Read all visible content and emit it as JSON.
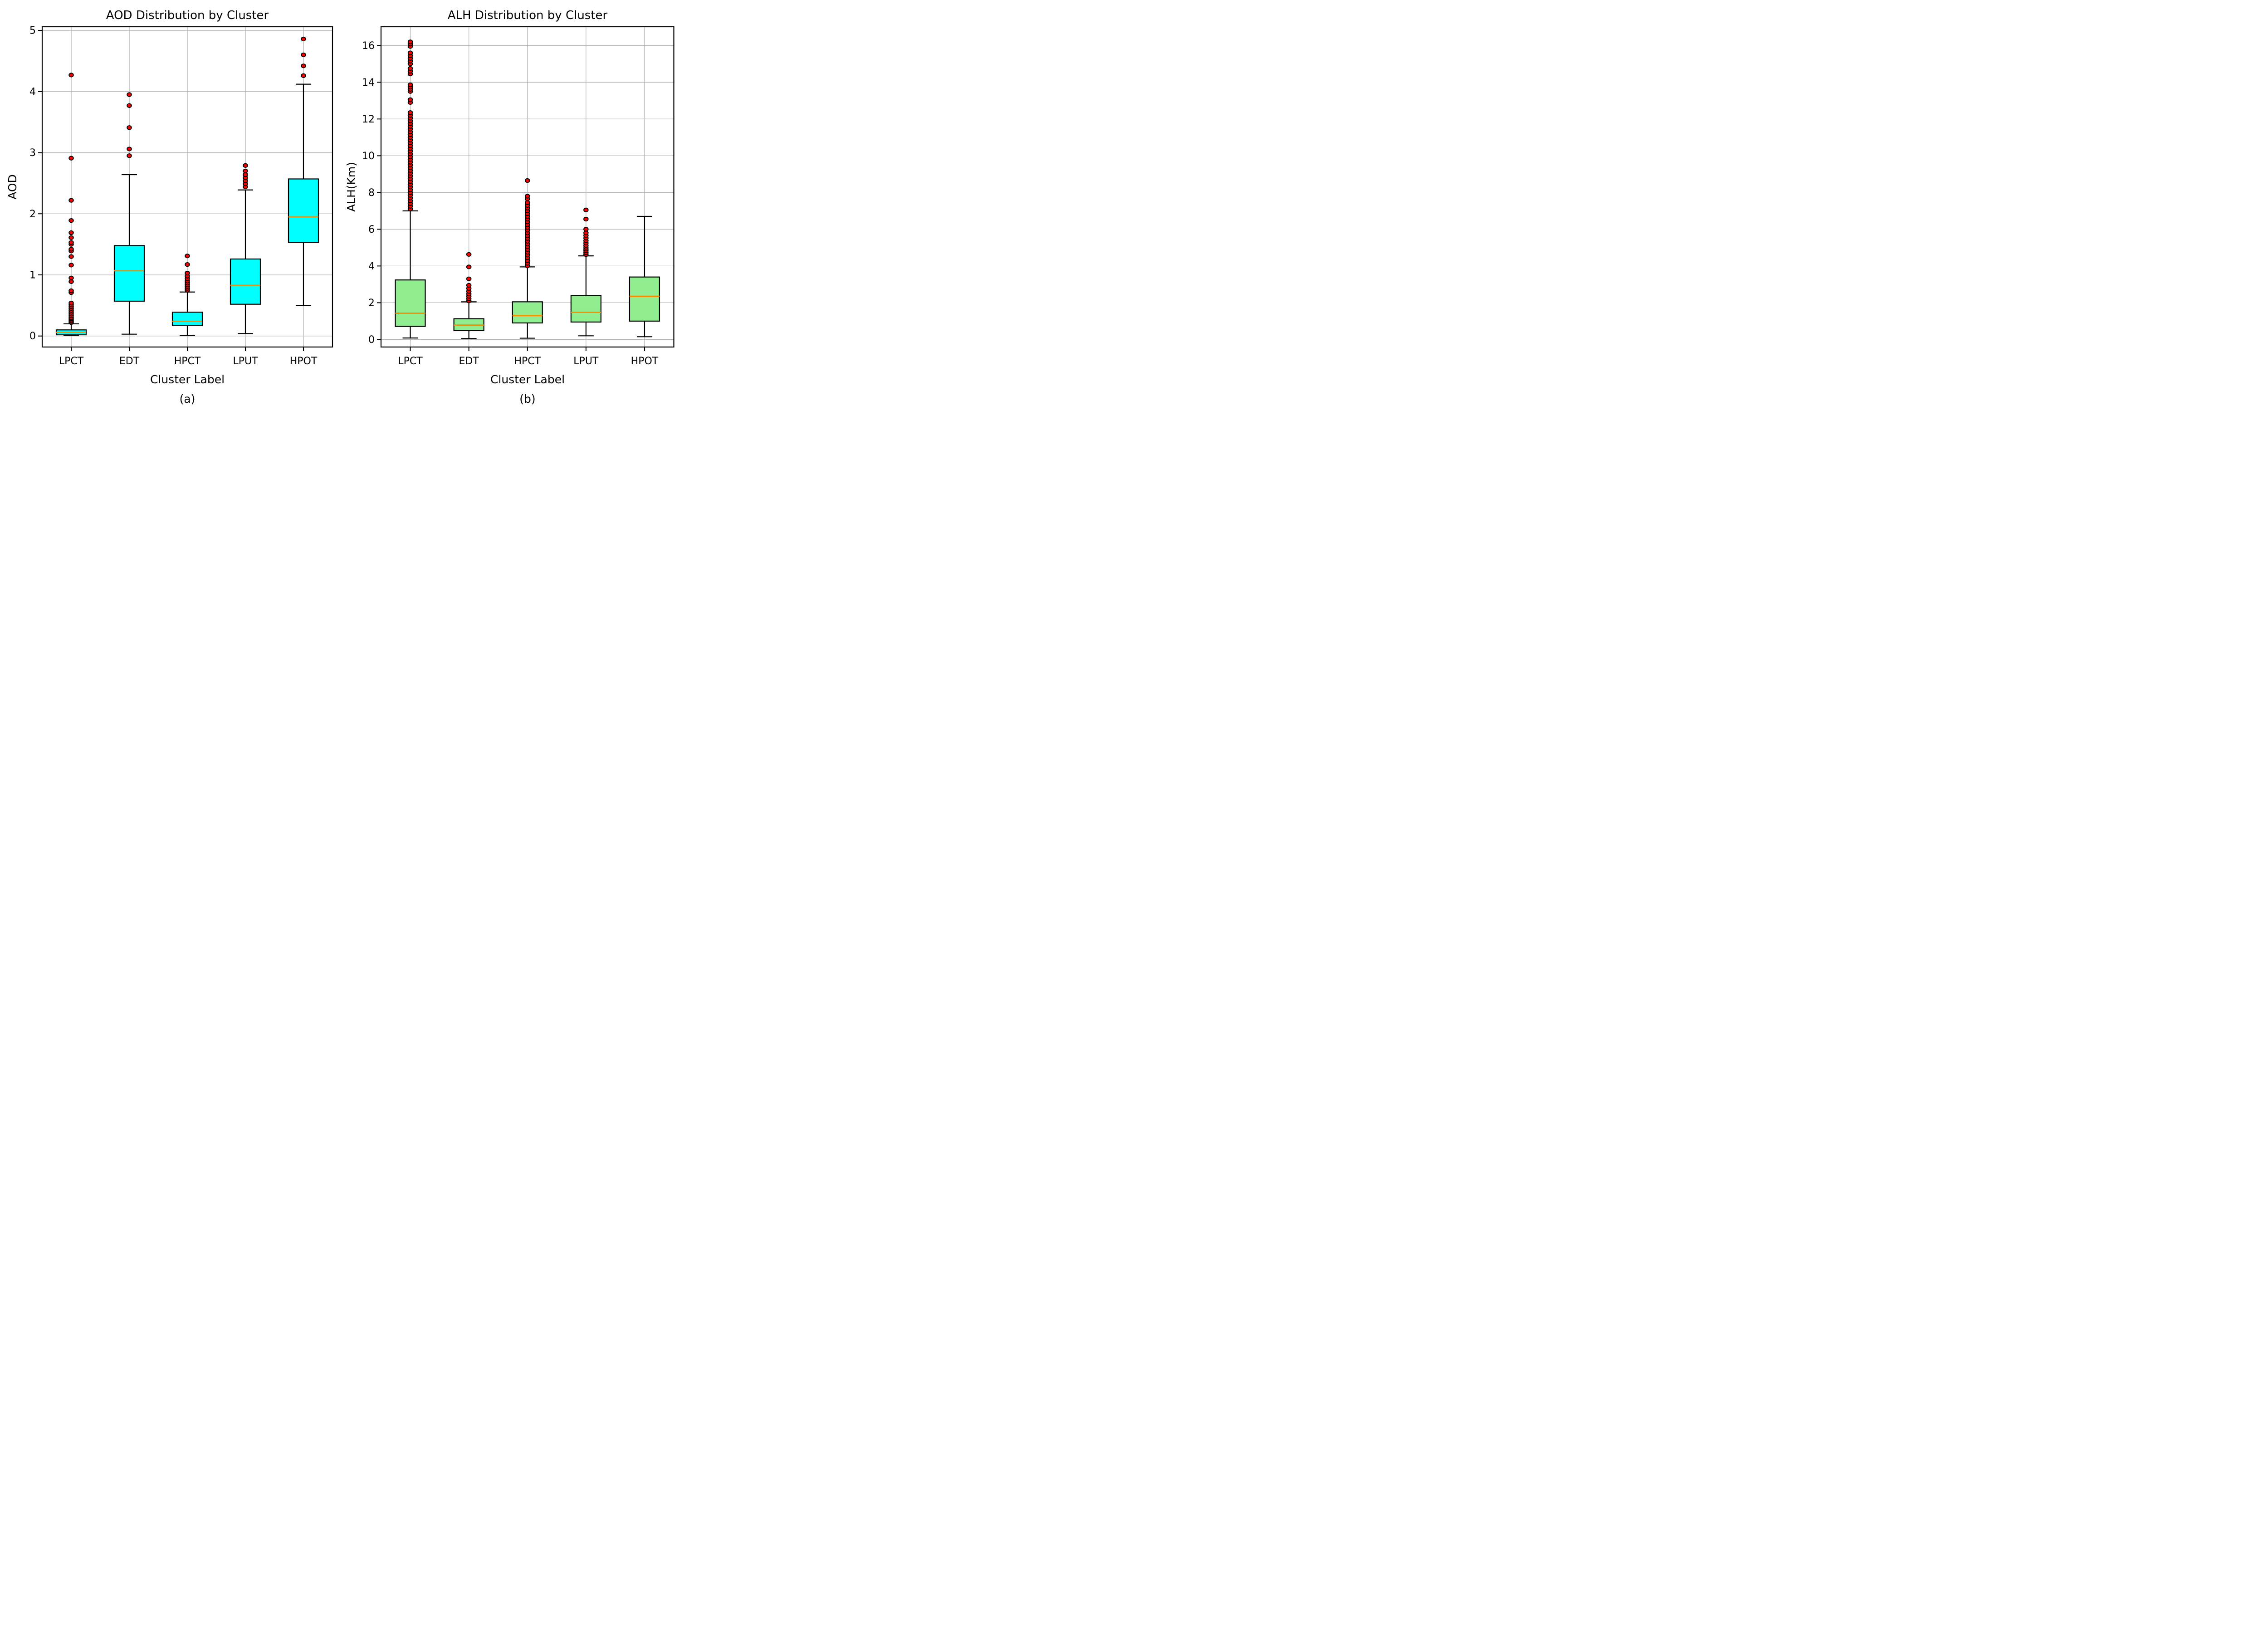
{
  "figure": {
    "background": "#ffffff",
    "grid_color": "#b4b4b4",
    "edge_color": "#000000"
  },
  "chart_data": [
    {
      "type": "box",
      "title": "AOD Distribution by Cluster",
      "xlabel": "Cluster Label",
      "ylabel": "AOD",
      "caption": "(a)",
      "categories": [
        "LPCT",
        "EDT",
        "HPCT",
        "LPUT",
        "HPOT"
      ],
      "ylim": [
        -0.18,
        5.06
      ],
      "yticks": [
        0,
        1,
        2,
        3,
        4,
        5
      ],
      "grid": true,
      "legend": "none",
      "box_fill": "#00ffff",
      "median_color": "#ff8c00",
      "flier_color": "#ff0000",
      "boxes": [
        {
          "label": "LPCT",
          "whislo": 0.01,
          "q1": 0.02,
          "med": 0.06,
          "q3": 0.1,
          "whishi": 0.2,
          "fliers": [
            0.22,
            0.24,
            0.26,
            0.28,
            0.3,
            0.33,
            0.36,
            0.39,
            0.42,
            0.45,
            0.48,
            0.51,
            0.54,
            0.71,
            0.74,
            0.89,
            0.95,
            1.16,
            1.3,
            1.39,
            1.42,
            1.5,
            1.53,
            1.61,
            1.69,
            1.89,
            2.22,
            2.91,
            4.27
          ]
        },
        {
          "label": "EDT",
          "whislo": 0.03,
          "q1": 0.57,
          "med": 1.07,
          "q3": 1.48,
          "whishi": 2.64,
          "fliers": [
            2.95,
            3.06,
            3.41,
            3.77,
            3.95
          ]
        },
        {
          "label": "HPCT",
          "whislo": 0.01,
          "q1": 0.17,
          "med": 0.24,
          "q3": 0.39,
          "whishi": 0.72,
          "fliers": [
            0.75,
            0.78,
            0.81,
            0.84,
            0.87,
            0.9,
            0.94,
            0.98,
            1.03,
            1.17,
            1.31
          ]
        },
        {
          "label": "LPUT",
          "whislo": 0.04,
          "q1": 0.52,
          "med": 0.83,
          "q3": 1.26,
          "whishi": 2.39,
          "fliers": [
            2.44,
            2.49,
            2.54,
            2.59,
            2.64,
            2.7,
            2.79
          ]
        },
        {
          "label": "HPOT",
          "whislo": 0.5,
          "q1": 1.53,
          "med": 1.95,
          "q3": 2.57,
          "whishi": 4.12,
          "fliers": [
            4.26,
            4.42,
            4.6,
            4.86
          ]
        }
      ]
    },
    {
      "type": "box",
      "title": "ALH Distribution by Cluster",
      "xlabel": "Cluster Label",
      "ylabel": "ALH(Km)",
      "caption": "(b)",
      "categories": [
        "LPCT",
        "EDT",
        "HPCT",
        "LPUT",
        "HPOT"
      ],
      "ylim": [
        -0.41,
        17.02
      ],
      "yticks": [
        0,
        2,
        4,
        6,
        8,
        10,
        12,
        14,
        16
      ],
      "grid": true,
      "legend": "none",
      "box_fill": "#90ee90",
      "median_color": "#ff8c00",
      "flier_color": "#ff0000",
      "boxes": [
        {
          "label": "LPCT",
          "whislo": 0.08,
          "q1": 0.71,
          "med": 1.43,
          "q3": 3.24,
          "whishi": 7.0,
          "fliers": [
            7.1,
            7.25,
            7.4,
            7.55,
            7.7,
            7.85,
            8.0,
            8.15,
            8.3,
            8.45,
            8.6,
            8.75,
            8.9,
            9.05,
            9.2,
            9.35,
            9.5,
            9.65,
            9.8,
            9.95,
            10.1,
            10.25,
            10.4,
            10.55,
            10.7,
            10.85,
            11.0,
            11.15,
            11.3,
            11.45,
            11.6,
            11.75,
            11.9,
            12.05,
            12.2,
            12.35,
            12.9,
            13.05,
            13.5,
            13.62,
            13.74,
            13.86,
            14.45,
            14.6,
            14.75,
            15.0,
            15.15,
            15.3,
            15.45,
            15.6,
            15.95,
            16.08,
            16.2
          ]
        },
        {
          "label": "EDT",
          "whislo": 0.05,
          "q1": 0.48,
          "med": 0.78,
          "q3": 1.13,
          "whishi": 2.05,
          "fliers": [
            2.1,
            2.22,
            2.35,
            2.48,
            2.62,
            2.78,
            2.95,
            3.3,
            3.95,
            4.63
          ]
        },
        {
          "label": "HPCT",
          "whislo": 0.07,
          "q1": 0.9,
          "med": 1.3,
          "q3": 2.05,
          "whishi": 3.95,
          "fliers": [
            4.0,
            4.15,
            4.3,
            4.45,
            4.6,
            4.75,
            4.9,
            5.05,
            5.2,
            5.35,
            5.5,
            5.65,
            5.8,
            5.95,
            6.1,
            6.25,
            6.4,
            6.55,
            6.7,
            6.85,
            7.0,
            7.15,
            7.3,
            7.45,
            7.65,
            7.8,
            8.65
          ]
        },
        {
          "label": "LPUT",
          "whislo": 0.2,
          "q1": 0.95,
          "med": 1.48,
          "q3": 2.4,
          "whishi": 4.55,
          "fliers": [
            4.62,
            4.72,
            4.82,
            4.92,
            5.02,
            5.12,
            5.25,
            5.38,
            5.52,
            5.66,
            5.8,
            6.0,
            6.55,
            7.05
          ]
        },
        {
          "label": "HPOT",
          "whislo": 0.15,
          "q1": 1.0,
          "med": 2.35,
          "q3": 3.4,
          "whishi": 6.7,
          "fliers": []
        }
      ]
    }
  ]
}
